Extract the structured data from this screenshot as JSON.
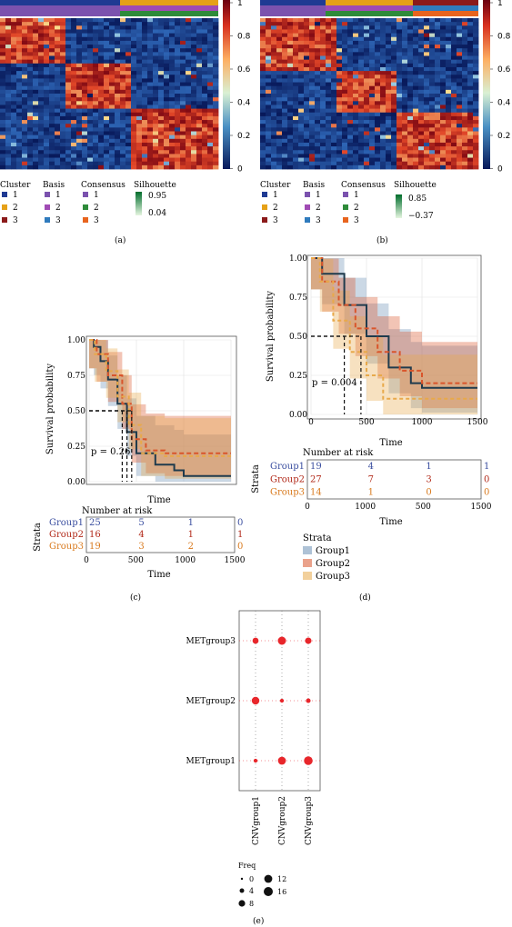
{
  "panel_labels": [
    "(a)",
    "(b)",
    "(c)",
    "(d)",
    "(e)"
  ],
  "colors": {
    "cluster": [
      "#1f3a93",
      "#e6a117",
      "#8b1a1a"
    ],
    "basis": [
      "#7b52ae",
      "#a04bb4",
      "#2f7bbd"
    ],
    "consensus": [
      "#7b52ae",
      "#2e8b3a",
      "#e8641e"
    ],
    "group1": "#6b8fb5",
    "group2": "#d9552b",
    "group3": "#e8a94a",
    "km_dark": "#1f3b4d",
    "dot": "#e8262b"
  },
  "legend_a": {
    "cluster_title": "Cluster",
    "cluster_items": [
      "1",
      "2",
      "3"
    ],
    "basis_title": "Basis",
    "basis_items": [
      "1",
      "2",
      "3"
    ],
    "consensus_title": "Consensus",
    "consensus_items": [
      "1",
      "2",
      "3"
    ],
    "silhouette_title": "Silhouette",
    "silhouette_max": "0.95",
    "silhouette_min": "0.04"
  },
  "legend_b": {
    "cluster_title": "Cluster",
    "cluster_items": [
      "1",
      "2",
      "3"
    ],
    "basis_title": "Basis",
    "basis_items": [
      "1",
      "2",
      "3"
    ],
    "consensus_title": "Consensus",
    "consensus_items": [
      "1",
      "2",
      "3"
    ],
    "silhouette_title": "Silhouette",
    "silhouette_max": "0.85",
    "silhouette_min": "−0.37"
  },
  "colorbar_ticks": [
    "1",
    "0.8",
    "0.6",
    "0.4",
    "0.2",
    "0"
  ],
  "km_c": {
    "ylabel": "Survival probability",
    "xlabel": "Time",
    "pvalue": "p = 0.26",
    "risk_title": "Number at risk",
    "strata_label": "Strata",
    "groups": [
      "Group1",
      "Group2",
      "Group3"
    ],
    "risk": [
      [
        "25",
        "5",
        "1",
        "0"
      ],
      [
        "16",
        "4",
        "1",
        "1"
      ],
      [
        "19",
        "3",
        "2",
        "0"
      ]
    ],
    "xticks": [
      "0",
      "500",
      "1000",
      "1500"
    ],
    "yticks": [
      "0.00",
      "0.25",
      "0.50",
      "0.75",
      "1.00"
    ]
  },
  "km_d": {
    "ylabel": "Survival probability",
    "xlabel": "Time",
    "pvalue": "p = 0.004",
    "risk_title": "Number at risk",
    "strata_label": "Strata",
    "groups": [
      "Group1",
      "Group2",
      "Group3"
    ],
    "risk": [
      [
        "19",
        "4",
        "1",
        "1"
      ],
      [
        "27",
        "7",
        "3",
        "0"
      ],
      [
        "14",
        "1",
        "0",
        "0"
      ]
    ],
    "xticks": [
      "0",
      "1000",
      "500",
      "1500"
    ],
    "yticks": [
      "0.00",
      "0.25",
      "0.50",
      "0.75",
      "1.00"
    ],
    "legend_title": "Strata",
    "legend_items": [
      "Group1",
      "Group2",
      "Group3"
    ]
  },
  "chart_data": [
    {
      "type": "heatmap",
      "panel": "(a)",
      "colorbar_range": [
        0,
        1
      ],
      "clusters": 3,
      "legend_titles": [
        "Cluster",
        "Basis",
        "Consensus",
        "Silhouette"
      ]
    },
    {
      "type": "heatmap",
      "panel": "(b)",
      "colorbar_range": [
        0,
        1
      ],
      "clusters": 3,
      "legend_titles": [
        "Cluster",
        "Basis",
        "Consensus",
        "Silhouette"
      ]
    },
    {
      "type": "line",
      "panel": "(c)",
      "xlabel": "Time",
      "ylabel": "Survival probability",
      "xlim": [
        0,
        1500
      ],
      "ylim": [
        0,
        1
      ],
      "series": [
        {
          "name": "Group1",
          "x": [
            0,
            50,
            120,
            200,
            300,
            400,
            500,
            700,
            900,
            1000,
            1200,
            1400,
            1450
          ],
          "y": [
            1.0,
            0.95,
            0.85,
            0.72,
            0.55,
            0.35,
            0.2,
            0.12,
            0.08,
            0.04,
            0.04,
            0.04,
            0.04
          ]
        },
        {
          "name": "Group2",
          "x": [
            0,
            80,
            200,
            350,
            450,
            600,
            800,
            1000,
            1200,
            1500
          ],
          "y": [
            1.0,
            0.9,
            0.75,
            0.55,
            0.3,
            0.22,
            0.2,
            0.2,
            0.2,
            0.2
          ]
        },
        {
          "name": "Group3",
          "x": [
            0,
            60,
            180,
            300,
            420,
            550,
            800,
            1000,
            1500
          ],
          "y": [
            1.0,
            0.9,
            0.78,
            0.6,
            0.4,
            0.2,
            0.18,
            0.18,
            0.18
          ]
        }
      ]
    },
    {
      "type": "line",
      "panel": "(d)",
      "xlabel": "Time",
      "ylabel": "Survival probability",
      "xlim": [
        0,
        1500
      ],
      "ylim": [
        0,
        1
      ],
      "series": [
        {
          "name": "Group1",
          "x": [
            0,
            100,
            300,
            500,
            700,
            900,
            1000,
            1500
          ],
          "y": [
            1.0,
            0.9,
            0.7,
            0.5,
            0.3,
            0.2,
            0.17,
            0.17
          ]
        },
        {
          "name": "Group2",
          "x": [
            0,
            100,
            250,
            400,
            600,
            800,
            1000,
            1450
          ],
          "y": [
            1.0,
            0.85,
            0.7,
            0.55,
            0.4,
            0.28,
            0.2,
            0.2
          ]
        },
        {
          "name": "Group3",
          "x": [
            0,
            80,
            200,
            350,
            500,
            650,
            800
          ],
          "y": [
            1.0,
            0.85,
            0.6,
            0.4,
            0.25,
            0.1,
            0.1
          ]
        }
      ]
    },
    {
      "type": "scatter",
      "panel": "(e)",
      "x_categories": [
        "CNVgroup1",
        "CNVgroup2",
        "CNVgroup3"
      ],
      "y_categories": [
        "METgroup1",
        "METgroup2",
        "METgroup3"
      ],
      "size_title": "Freq",
      "size_legend": [
        "0",
        "4",
        "8",
        "12",
        "16"
      ],
      "points": [
        {
          "x": "CNVgroup1",
          "y": "METgroup3",
          "freq": 5
        },
        {
          "x": "CNVgroup2",
          "y": "METgroup3",
          "freq": 12
        },
        {
          "x": "CNVgroup3",
          "y": "METgroup3",
          "freq": 6
        },
        {
          "x": "CNVgroup1",
          "y": "METgroup2",
          "freq": 10
        },
        {
          "x": "CNVgroup2",
          "y": "METgroup2",
          "freq": 1
        },
        {
          "x": "CNVgroup3",
          "y": "METgroup2",
          "freq": 2
        },
        {
          "x": "CNVgroup1",
          "y": "METgroup1",
          "freq": 1
        },
        {
          "x": "CNVgroup2",
          "y": "METgroup1",
          "freq": 11
        },
        {
          "x": "CNVgroup3",
          "y": "METgroup1",
          "freq": 14
        }
      ]
    }
  ]
}
